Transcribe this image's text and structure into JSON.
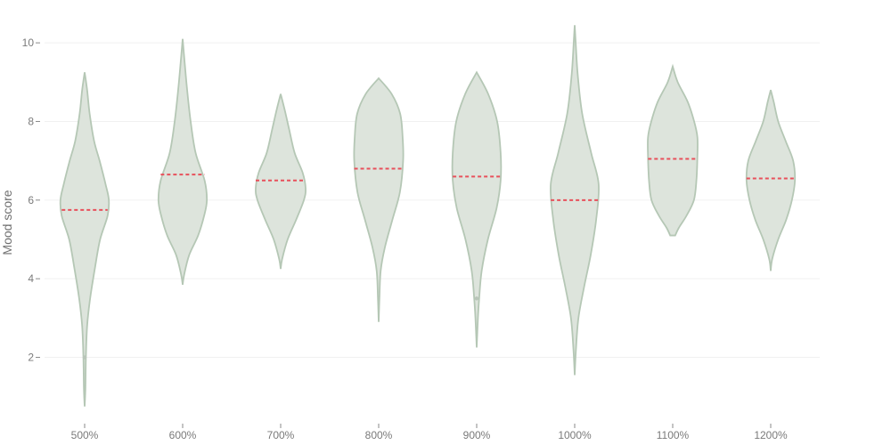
{
  "chart_data": {
    "type": "violin",
    "title": "",
    "xlabel": "",
    "ylabel": "Mood score",
    "ylim": [
      0.45,
      10.75
    ],
    "yticks": [
      2,
      4,
      6,
      8,
      10
    ],
    "grid": true,
    "legend": "none",
    "colors": {
      "violin_fill": "#dde4dc",
      "violin_stroke": "#b5c7b5",
      "median_line": "#e8505b",
      "grid": "#f1f1f1",
      "tick_text": "#7a7a7a",
      "axis_title": "#6f6f6f"
    },
    "categories": [
      "500%",
      "600%",
      "700%",
      "800%",
      "900%",
      "1000%",
      "1100%",
      "1200%"
    ],
    "series": [
      {
        "category": "500%",
        "median": 5.75,
        "outliers": [
          2.0
        ],
        "density": [
          [
            0.75,
            0.0
          ],
          [
            1.2,
            0.03
          ],
          [
            2.0,
            0.05
          ],
          [
            2.8,
            0.1
          ],
          [
            3.5,
            0.22
          ],
          [
            4.3,
            0.42
          ],
          [
            5.0,
            0.62
          ],
          [
            5.6,
            0.92
          ],
          [
            6.0,
            0.97
          ],
          [
            6.4,
            0.84
          ],
          [
            7.0,
            0.6
          ],
          [
            7.5,
            0.38
          ],
          [
            8.2,
            0.2
          ],
          [
            8.8,
            0.1
          ],
          [
            9.25,
            0.0
          ]
        ]
      },
      {
        "category": "600%",
        "median": 6.65,
        "outliers": [],
        "density": [
          [
            3.85,
            0.0
          ],
          [
            4.1,
            0.06
          ],
          [
            4.6,
            0.26
          ],
          [
            5.1,
            0.62
          ],
          [
            5.6,
            0.86
          ],
          [
            6.0,
            0.97
          ],
          [
            6.5,
            0.88
          ],
          [
            7.2,
            0.52
          ],
          [
            8.0,
            0.32
          ],
          [
            8.8,
            0.18
          ],
          [
            9.5,
            0.08
          ],
          [
            10.1,
            0.0
          ]
        ]
      },
      {
        "category": "700%",
        "median": 6.5,
        "outliers": [],
        "density": [
          [
            4.25,
            0.0
          ],
          [
            4.5,
            0.06
          ],
          [
            5.0,
            0.28
          ],
          [
            5.5,
            0.62
          ],
          [
            6.0,
            0.93
          ],
          [
            6.3,
            1.0
          ],
          [
            6.7,
            0.88
          ],
          [
            7.2,
            0.56
          ],
          [
            7.8,
            0.34
          ],
          [
            8.3,
            0.16
          ],
          [
            8.7,
            0.0
          ]
        ]
      },
      {
        "category": "800%",
        "median": 6.8,
        "outliers": [],
        "density": [
          [
            2.9,
            0.0
          ],
          [
            3.5,
            0.03
          ],
          [
            4.2,
            0.08
          ],
          [
            4.8,
            0.25
          ],
          [
            5.5,
            0.55
          ],
          [
            6.2,
            0.85
          ],
          [
            7.0,
            0.98
          ],
          [
            7.6,
            0.96
          ],
          [
            8.2,
            0.86
          ],
          [
            8.7,
            0.52
          ],
          [
            9.1,
            0.0
          ]
        ]
      },
      {
        "category": "900%",
        "median": 6.6,
        "outliers": [
          3.5
        ],
        "density": [
          [
            2.25,
            0.0
          ],
          [
            3.0,
            0.05
          ],
          [
            3.5,
            0.1
          ],
          [
            4.2,
            0.2
          ],
          [
            5.0,
            0.45
          ],
          [
            5.8,
            0.8
          ],
          [
            6.5,
            0.96
          ],
          [
            7.2,
            0.96
          ],
          [
            8.0,
            0.82
          ],
          [
            8.7,
            0.46
          ],
          [
            9.25,
            0.0
          ]
        ]
      },
      {
        "category": "1000%",
        "median": 6.0,
        "outliers": [],
        "density": [
          [
            1.55,
            0.0
          ],
          [
            2.2,
            0.05
          ],
          [
            3.0,
            0.15
          ],
          [
            3.8,
            0.38
          ],
          [
            4.6,
            0.64
          ],
          [
            5.5,
            0.86
          ],
          [
            6.4,
            0.96
          ],
          [
            7.2,
            0.66
          ],
          [
            8.2,
            0.3
          ],
          [
            9.2,
            0.12
          ],
          [
            10.0,
            0.04
          ],
          [
            10.45,
            0.0
          ]
        ]
      },
      {
        "category": "1100%",
        "median": 7.05,
        "outliers": [],
        "density": [
          [
            5.1,
            0.1
          ],
          [
            5.3,
            0.25
          ],
          [
            5.6,
            0.55
          ],
          [
            6.0,
            0.85
          ],
          [
            6.5,
            0.95
          ],
          [
            7.1,
            0.99
          ],
          [
            7.6,
            0.99
          ],
          [
            8.0,
            0.86
          ],
          [
            8.5,
            0.6
          ],
          [
            9.0,
            0.2
          ],
          [
            9.4,
            0.0
          ]
        ]
      },
      {
        "category": "1200%",
        "median": 6.55,
        "outliers": [],
        "density": [
          [
            4.2,
            0.0
          ],
          [
            4.5,
            0.06
          ],
          [
            5.0,
            0.3
          ],
          [
            5.5,
            0.62
          ],
          [
            6.0,
            0.85
          ],
          [
            6.5,
            0.97
          ],
          [
            7.0,
            0.9
          ],
          [
            7.5,
            0.6
          ],
          [
            8.0,
            0.3
          ],
          [
            8.5,
            0.12
          ],
          [
            8.8,
            0.0
          ]
        ]
      }
    ]
  }
}
